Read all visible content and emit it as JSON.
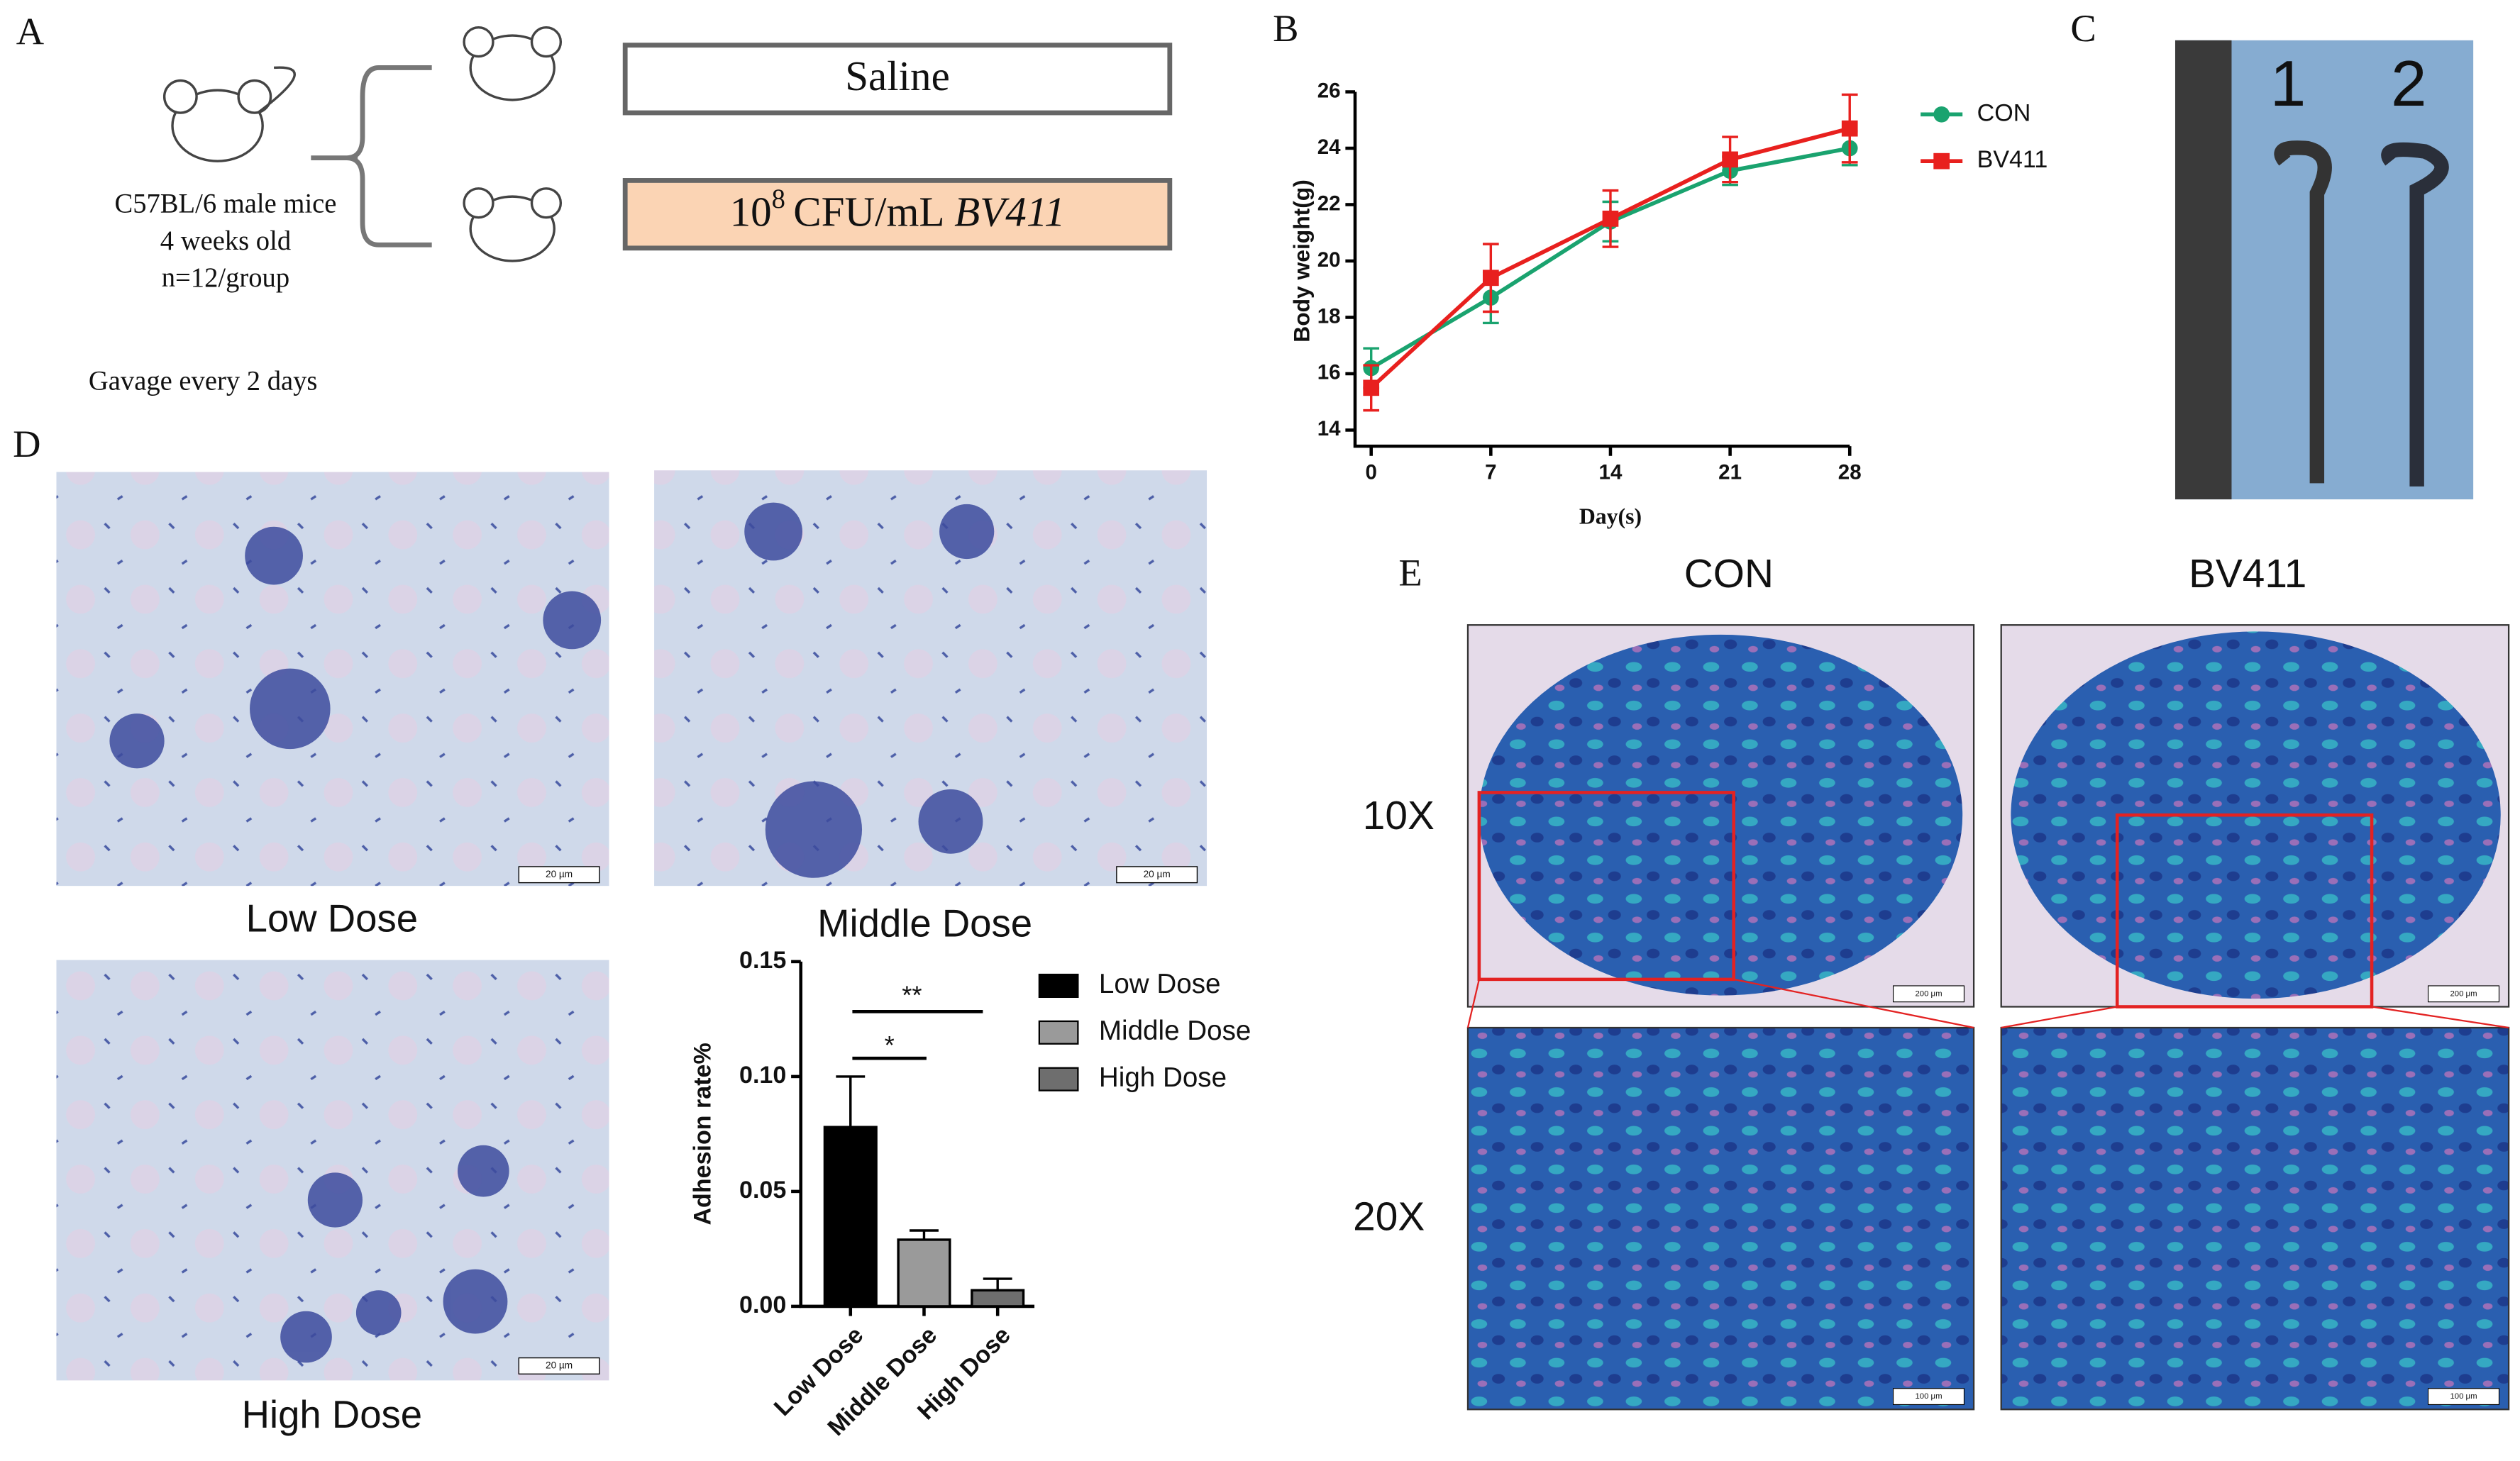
{
  "panel_labels": [
    "A",
    "B",
    "C",
    "D",
    "E"
  ],
  "panel_a": {
    "mouse_lines": [
      "C57BL/6 male mice",
      "4 weeks old",
      "n=12/group"
    ],
    "schedule": "Gavage every 2 days",
    "groups": {
      "control": "Saline",
      "treatment": {
        "base": "10",
        "exponent": "8",
        "unit": "CFU/mL",
        "strain": "BV411"
      }
    }
  },
  "chart_data": [
    {
      "type": "line",
      "xlabel": "Day(s)",
      "ylabel": "Body weight(g)",
      "x": [
        0,
        7,
        14,
        21,
        28
      ],
      "xlim": [
        0,
        28
      ],
      "xticks": [
        0,
        7,
        14,
        21,
        28
      ],
      "ylim": [
        14,
        26
      ],
      "yticks": [
        14,
        16,
        18,
        20,
        22,
        24,
        26
      ],
      "legend": "right",
      "series": [
        {
          "name": "CON",
          "color": "#1aa36f",
          "marker": "circle",
          "values": [
            16.2,
            18.7,
            21.4,
            23.2,
            24.0
          ],
          "errors": [
            0.7,
            0.9,
            0.7,
            0.5,
            0.6
          ]
        },
        {
          "name": "BV411",
          "color": "#e8201e",
          "marker": "square",
          "values": [
            15.5,
            19.4,
            21.5,
            23.6,
            24.7
          ],
          "errors": [
            0.8,
            1.2,
            1.0,
            0.8,
            1.2
          ]
        }
      ]
    },
    {
      "type": "bar",
      "ylabel": "Adhesion rate%",
      "categories": [
        "Low Dose",
        "Middle Dose",
        "High Dose"
      ],
      "values": [
        0.078,
        0.029,
        0.007
      ],
      "errors": [
        0.022,
        0.004,
        0.005
      ],
      "colors": [
        "#000000",
        "#9a9a9a",
        "#6e6e6e"
      ],
      "ylim": [
        0,
        0.15
      ],
      "yticks": [
        {
          "value": 0,
          "label": "0.00"
        },
        {
          "value": 0.05,
          "label": "0.05"
        },
        {
          "value": 0.1,
          "label": "0.10"
        },
        {
          "value": 0.15,
          "label": "0.15"
        }
      ],
      "annotations": [
        "*",
        "**"
      ],
      "legend": "right"
    }
  ],
  "panel_c": {
    "sample_labels": [
      "1",
      "2"
    ]
  },
  "panel_d": {
    "captions": [
      "Low Dose",
      "Middle Dose",
      "High Dose"
    ],
    "scale_bar": "20 µm"
  },
  "panel_e": {
    "columns": [
      "CON",
      "BV411"
    ],
    "rows": [
      "10X",
      "20X"
    ],
    "scale_bars": [
      "200 μm",
      "100 μm"
    ]
  }
}
